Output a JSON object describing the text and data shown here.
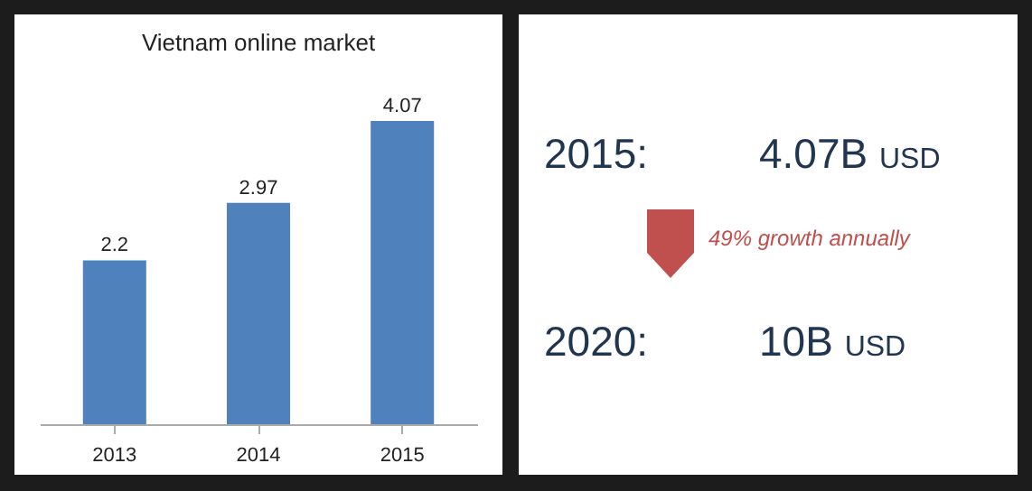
{
  "chart_data": [
    {
      "type": "bar",
      "title": "Vietnam online market",
      "categories": [
        "2013",
        "2014",
        "2015"
      ],
      "values": [
        2.2,
        2.97,
        4.07
      ],
      "color": "#4f81bd",
      "data_labels": true
    },
    {
      "type": "other",
      "annotations": [
        "2015:",
        "4.07B USD",
        "49% growth annually",
        "2020:",
        "10B USD"
      ]
    }
  ]
}
